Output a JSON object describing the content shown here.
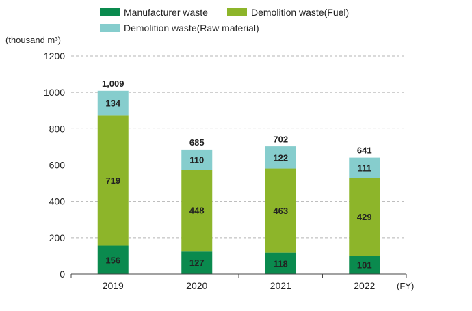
{
  "chart_data": {
    "type": "bar",
    "stacked": true,
    "categories": [
      "2019",
      "2020",
      "2021",
      "2022"
    ],
    "series": [
      {
        "name": "Manufacturer waste",
        "values": [
          156,
          127,
          118,
          101
        ],
        "color": "#0a8a4e"
      },
      {
        "name": "Demolition waste(Fuel)",
        "values": [
          719,
          448,
          463,
          429
        ],
        "color": "#8db52a"
      },
      {
        "name": "Demolition waste(Raw material)",
        "values": [
          134,
          110,
          122,
          111
        ],
        "color": "#86cdcd"
      }
    ],
    "totals": [
      1009,
      685,
      702,
      641
    ],
    "total_labels": [
      "1,009",
      "685",
      "702",
      "641"
    ],
    "y_ticks": [
      "0",
      "200",
      "400",
      "600",
      "800",
      "1000",
      "1200"
    ],
    "ylim": [
      0,
      1200
    ],
    "ylabel": "(thousand m³)",
    "xunit": "(FY)",
    "grid": true,
    "legend_position": "top"
  }
}
